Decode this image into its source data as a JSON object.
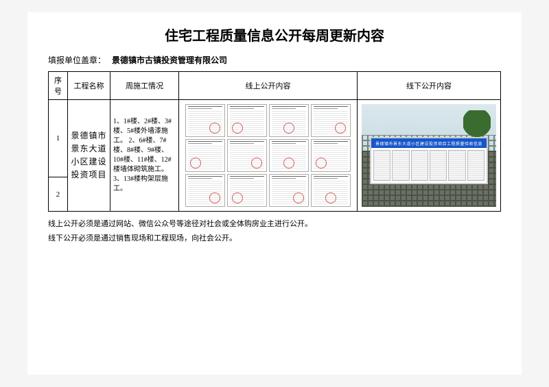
{
  "title": "住宅工程质量信息公开每周更新内容",
  "filler": {
    "label": "填报单位盖章：",
    "value": "景德镇市古镇投资管理有限公司"
  },
  "columns": {
    "seq": "序号",
    "name": "工程名称",
    "week": "周施工情况",
    "online": "线上公开内容",
    "offline": "线下公开内容"
  },
  "rows": {
    "r1": {
      "seq": "1",
      "project_name": "景德镇市景东大道小区建设投资项目",
      "week_status": "1、1#楼、2#楼、3#楼、5#楼外墙漆施工。\n2、6#楼、7#楼、8#楼、9#楼、10#楼、11#楼、12#楼墙体砌筑施工。\n3、13#楼构架层施工。"
    },
    "r2": {
      "seq": "2"
    }
  },
  "board_banner": "景德镇市景东大道小区建设投资项目工程质量验收信息",
  "notes": {
    "n1": "线上公开必须是通过网站、微信公众号等途径对社会或全体购房业主进行公开。",
    "n2": "线下公开必须是通过销售现场和工程现场，向社会公开。"
  },
  "colors": {
    "banner_blue": "#1656c9",
    "stamp_red": "#c81e1e"
  }
}
